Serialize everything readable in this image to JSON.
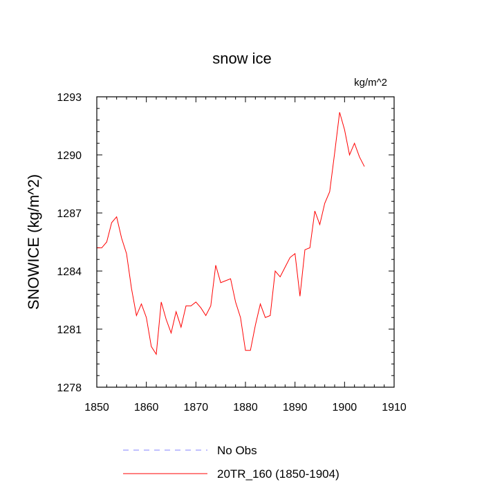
{
  "chart_data": {
    "type": "line",
    "title": "snow ice",
    "units_label": "kg/m^2",
    "xlabel": "",
    "ylabel": "SNOWICE  (kg/m^2)",
    "xlim": [
      1850,
      1910
    ],
    "ylim": [
      1278,
      1293
    ],
    "x_ticks": [
      1850,
      1860,
      1870,
      1880,
      1890,
      1900,
      1910
    ],
    "y_ticks": [
      1278,
      1281,
      1284,
      1287,
      1290,
      1293
    ],
    "x_tick_labels": [
      "1850",
      "1860",
      "1870",
      "1880",
      "1890",
      "1900",
      "1910"
    ],
    "y_tick_labels": [
      "1278",
      "1281",
      "1284",
      "1287",
      "1290",
      "1293"
    ],
    "grid": false,
    "legend_position": "bottom",
    "series": [
      {
        "name": "No Obs",
        "color": "#8080ff",
        "style": "dashed",
        "x": [],
        "y": []
      },
      {
        "name": "20TR_160 (1850-1904)",
        "color": "#ff0000",
        "style": "solid",
        "x": [
          1850,
          1851,
          1852,
          1853,
          1854,
          1855,
          1856,
          1857,
          1858,
          1859,
          1860,
          1861,
          1862,
          1863,
          1864,
          1865,
          1866,
          1867,
          1868,
          1869,
          1870,
          1871,
          1872,
          1873,
          1874,
          1875,
          1876,
          1877,
          1878,
          1879,
          1880,
          1881,
          1882,
          1883,
          1884,
          1885,
          1886,
          1887,
          1888,
          1889,
          1890,
          1891,
          1892,
          1893,
          1894,
          1895,
          1896,
          1897,
          1898,
          1899,
          1900,
          1901,
          1902,
          1903,
          1904
        ],
        "y": [
          1285.2,
          1285.2,
          1285.5,
          1286.5,
          1286.8,
          1285.7,
          1284.9,
          1283.1,
          1281.7,
          1282.3,
          1281.6,
          1280.1,
          1279.7,
          1282.4,
          1281.5,
          1280.8,
          1281.9,
          1281.1,
          1282.2,
          1282.2,
          1282.4,
          1282.1,
          1281.7,
          1282.2,
          1284.3,
          1283.4,
          1283.5,
          1283.6,
          1282.4,
          1281.6,
          1279.9,
          1279.9,
          1281.2,
          1282.3,
          1281.6,
          1281.7,
          1284.0,
          1283.7,
          1284.2,
          1284.7,
          1284.9,
          1282.7,
          1285.1,
          1285.2,
          1287.1,
          1286.4,
          1287.5,
          1288.1,
          1290.1,
          1292.2,
          1291.3,
          1290.0,
          1290.6,
          1289.9,
          1289.4
        ]
      }
    ]
  }
}
